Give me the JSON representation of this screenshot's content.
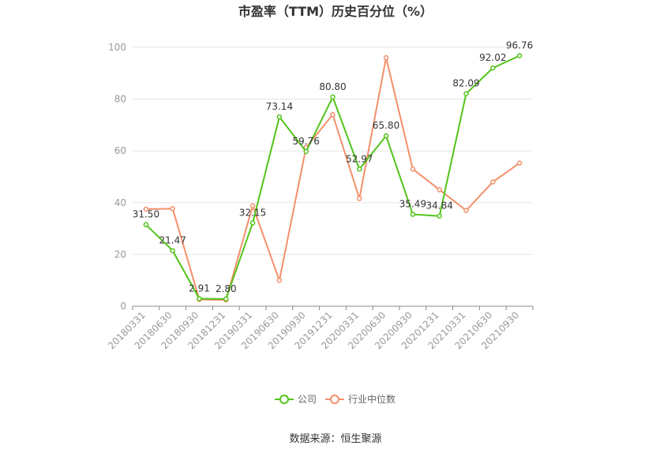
{
  "chart_data": {
    "type": "line",
    "title": "市盈率（TTM）历史百分位（%）",
    "categories": [
      "20180331",
      "20180630",
      "20180930",
      "20181231",
      "20190331",
      "20190630",
      "20190930",
      "20191231",
      "20200331",
      "20200630",
      "20200930",
      "20201231",
      "20210331",
      "20210630",
      "20210930"
    ],
    "ylim": [
      0,
      100
    ],
    "yticks": [
      0,
      20,
      40,
      60,
      80,
      100
    ],
    "grid": true,
    "legend_position": "bottom",
    "series": [
      {
        "name": "公司",
        "color": "#52c41a",
        "values": [
          31.5,
          21.47,
          2.91,
          2.8,
          32.15,
          73.14,
          59.76,
          80.8,
          52.97,
          65.8,
          35.49,
          34.84,
          82.09,
          92.02,
          96.76
        ],
        "labels": [
          "31.50",
          "21.47",
          "2.91",
          "2.80",
          "32.15",
          "73.14",
          "59.76",
          "80.80",
          "52.97",
          "65.80",
          "35.49",
          "34.84",
          "82.09",
          "92.02",
          "96.76"
        ]
      },
      {
        "name": "行业中位数",
        "color": "#f4906b",
        "values": [
          37.5,
          37.7,
          2.6,
          2.4,
          38.8,
          10.0,
          61.3,
          74.0,
          41.6,
          96.0,
          53.0,
          45.0,
          37.0,
          48.0,
          55.3
        ]
      }
    ]
  },
  "source_text": "数据来源：恒生聚源"
}
